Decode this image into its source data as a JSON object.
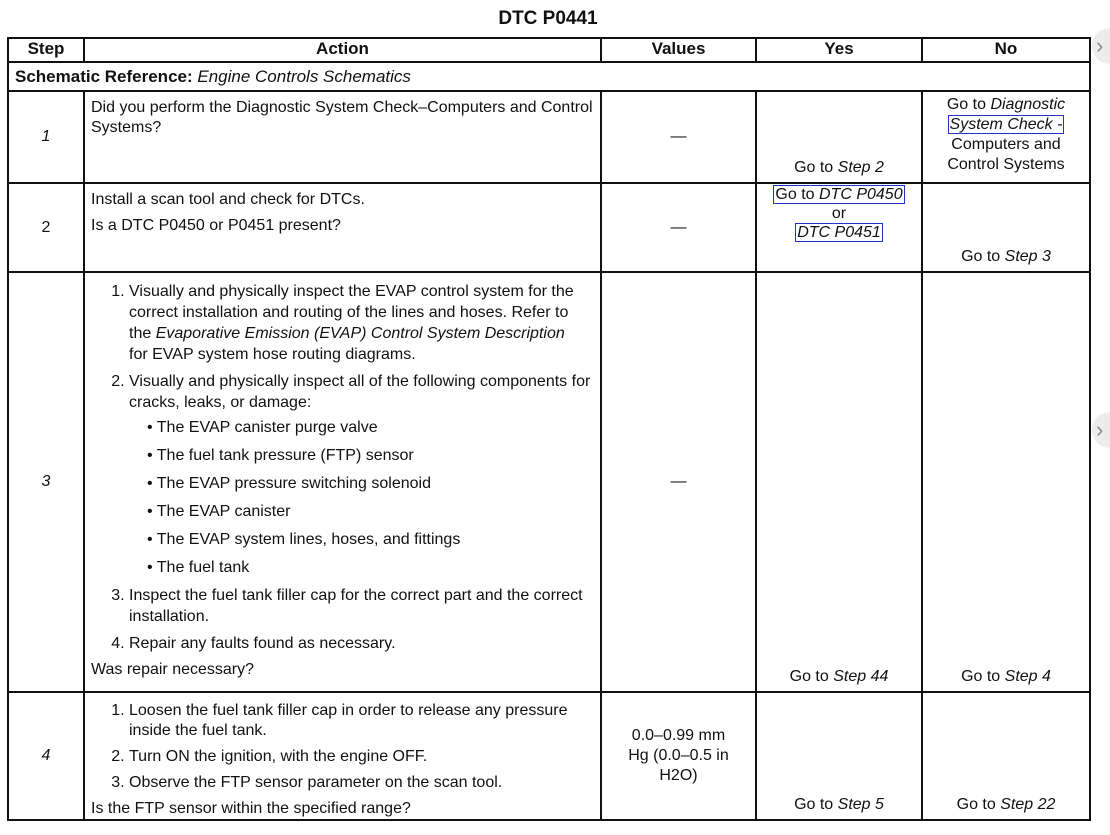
{
  "title": "DTC P0441",
  "headers": {
    "step": "Step",
    "action": "Action",
    "values": "Values",
    "yes": "Yes",
    "no": "No"
  },
  "schematic": {
    "label": "Schematic Reference:",
    "value": "Engine Controls Schematics"
  },
  "rows": [
    {
      "step": "1",
      "action": "Did you perform the Diagnostic System Check–Computers and Control Systems?",
      "values": "—",
      "yes_prefix": "Go to",
      "yes_link": "Step 2",
      "no_prefix": "Go to",
      "no_link_a": "Diagnostic",
      "no_link_b": "System Check -",
      "no_rest": "Computers and Control Systems"
    },
    {
      "step": "2",
      "action_lines": [
        "Install a scan tool and check for DTCs.",
        "Is a DTC P0450 or P0451 present?"
      ],
      "values": "—",
      "yes_prefix": "Go to",
      "yes_link1": "DTC P0450",
      "yes_or": "or",
      "yes_link2": "DTC P0451",
      "no_prefix": "Go to",
      "no_link": "Step 3"
    },
    {
      "step": "3",
      "item1_a": "Visually and physically inspect the EVAP control system for the correct installation and routing of the lines and hoses. Refer to the",
      "item1_link": "Evaporative Emission (EVAP) Control System Description",
      "item1_b": "for EVAP system hose routing diagrams.",
      "item2": "Visually and physically inspect all of the following components for cracks, leaks, or damage:",
      "bullets": [
        "The EVAP canister purge valve",
        "The fuel tank pressure (FTP) sensor",
        "The EVAP pressure switching solenoid",
        "The EVAP canister",
        "The EVAP system lines, hoses, and fittings",
        "The fuel tank"
      ],
      "item3": "Inspect the fuel tank filler cap for the correct part and the correct installation.",
      "item4": "Repair any faults found as necessary.",
      "question": "Was repair necessary?",
      "values": "—",
      "yes_prefix": "Go to",
      "yes_link": "Step 44",
      "no_prefix": "Go to",
      "no_link": "Step 4"
    },
    {
      "step": "4",
      "items": [
        "Loosen the fuel tank filler cap in order to release any pressure inside the fuel tank.",
        "Turn ON the ignition, with the engine OFF.",
        "Observe the FTP sensor parameter on the scan tool."
      ],
      "question": "Is the FTP sensor within the specified range?",
      "values": "0.0–0.99 mm Hg (0.0–0.5 in H2O)",
      "yes_prefix": "Go to",
      "yes_link": "Step 5",
      "no_prefix": "Go to",
      "no_link": "Step 22"
    }
  ]
}
